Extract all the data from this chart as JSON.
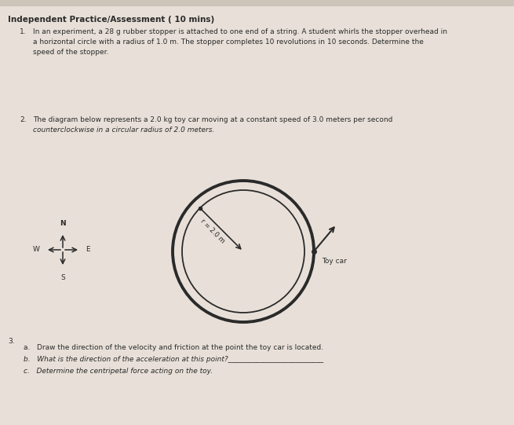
{
  "bg_color": "#cdc5ba",
  "page_color": "#e8e0d8",
  "title": "Independent Practice/Assessment ( 10 mins)",
  "q1_num": "1.",
  "q1_text": "In an experiment, a 28 g rubber stopper is attached to one end of a string. A student whirls the stopper overhead in\na horizontal circle with a radius of 1.0 m. The stopper completes 10 revolutions in 10 seconds. Determine the\nspeed of the stopper.",
  "q2_num": "2.",
  "q2_text": "The diagram below represents a 2.0 kg toy car moving at a constant speed of 3.0 meters per second\ncounterclockwise in a circular radius of 2.0 meters.",
  "q3_num": "3.",
  "q3a_text": "a.   Draw the direction of the velocity and friction at the point the toy car is located.",
  "q3b_text": "b.   What is the direction of the acceleration at this point?___________________________",
  "q3c_text": "c.   Determine the centripetal force acting on the toy.",
  "circle_color": "#2a2a2a",
  "circle_linewidth_outer": 2.8,
  "circle_linewidth_inner": 1.3,
  "radius_label": "r = 2.0 m",
  "toy_car_label": "Toy car",
  "arrow_color": "#2a2a2a",
  "text_color": "#2a2a2a",
  "title_fontsize": 7.5,
  "body_fontsize": 6.5,
  "small_fontsize": 6.0
}
